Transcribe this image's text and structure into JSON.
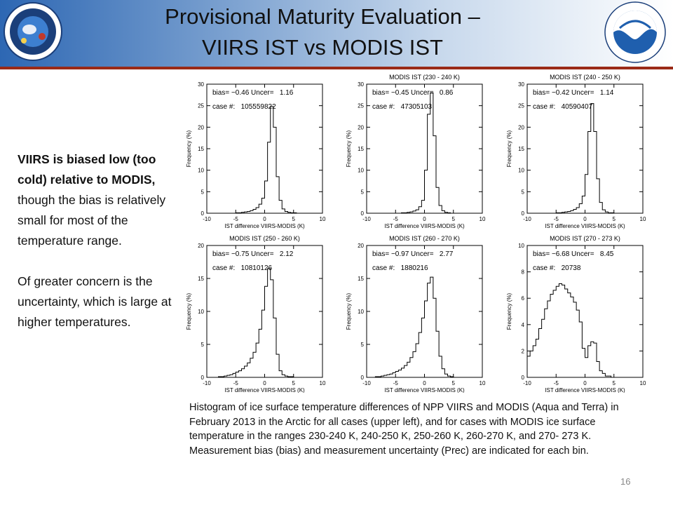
{
  "header": {
    "title_line1": "Provisional Maturity Evaluation –",
    "title_line2": "VIIRS IST vs MODIS IST",
    "logo_left": "noaa-nesdis-star-logo",
    "logo_right": "noaa-logo"
  },
  "left_text": {
    "bold_part": "VIIRS is biased low (too cold) relative to MODIS,",
    "normal_part": " though the bias is relatively small for most of the temperature range.",
    "para2": "Of greater concern is the uncertainty, which is large at higher temperatures."
  },
  "caption": "Histogram of ice surface temperature differences of NPP VIIRS and MODIS (Aqua and Terra) in February 2013 in the Arctic for all cases (upper left), and for cases with MODIS ice surface temperature in the ranges 230-240 K, 240-250 K, 250-260 K, 260-270 K, and 270- 273 K. Measurement bias (bias) and measurement uncertainty (Prec) are indicated for each bin.",
  "page_number": "16",
  "chart_data": [
    {
      "type": "bar",
      "title": "",
      "xlabel": "IST difference VIIRS-MODIS (K)",
      "ylabel": "Frequency (%)",
      "xlim": [
        -10,
        10
      ],
      "ylim": [
        0,
        30
      ],
      "xticks": [
        -10,
        -5,
        0,
        5,
        10
      ],
      "yticks": [
        0,
        5,
        10,
        15,
        20,
        25,
        30
      ],
      "stats_line1": "bias= −0.46 Uncer=   1.16",
      "stats_line2": "case #:   105559822",
      "bin_width": 0.5,
      "x_start": -10,
      "values": [
        0,
        0,
        0,
        0,
        0,
        0,
        0,
        0,
        0,
        0,
        0.1,
        0.1,
        0.2,
        0.3,
        0.4,
        0.6,
        0.9,
        1.3,
        2.1,
        3.5,
        7.5,
        16.5,
        24.8,
        20,
        8.5,
        3,
        1,
        0.4,
        0.2,
        0.1,
        0.1,
        0,
        0,
        0,
        0,
        0,
        0,
        0,
        0,
        0
      ]
    },
    {
      "type": "bar",
      "title": "MODIS IST (230 - 240 K)",
      "xlabel": "IST difference VIIRS-MODIS (K)",
      "ylabel": "Frequency (%)",
      "xlim": [
        -10,
        10
      ],
      "ylim": [
        0,
        30
      ],
      "xticks": [
        -10,
        -5,
        0,
        5,
        10
      ],
      "yticks": [
        0,
        5,
        10,
        15,
        20,
        25,
        30
      ],
      "stats_line1": "bias= −0.45 Uncer=   0.86",
      "stats_line2": "case #:   47305103",
      "bin_width": 0.5,
      "x_start": -10,
      "values": [
        0,
        0,
        0,
        0,
        0,
        0,
        0,
        0,
        0,
        0,
        0,
        0,
        0.1,
        0.1,
        0.2,
        0.3,
        0.5,
        0.8,
        1.5,
        3,
        10,
        23,
        28,
        18,
        6,
        1.8,
        0.6,
        0.2,
        0.1,
        0,
        0,
        0,
        0,
        0,
        0,
        0,
        0,
        0,
        0,
        0
      ]
    },
    {
      "type": "bar",
      "title": "MODIS IST (240 - 250 K)",
      "xlabel": "IST difference VIIRS-MODIS (K)",
      "ylabel": "Frequency (%)",
      "xlim": [
        -10,
        10
      ],
      "ylim": [
        0,
        30
      ],
      "xticks": [
        -10,
        -5,
        0,
        5,
        10
      ],
      "yticks": [
        0,
        5,
        10,
        15,
        20,
        25,
        30
      ],
      "stats_line1": "bias= −0.42 Uncer=   1.14",
      "stats_line2": "case #:   40590407",
      "bin_width": 0.5,
      "x_start": -10,
      "values": [
        0,
        0,
        0,
        0,
        0,
        0,
        0,
        0,
        0,
        0,
        0.1,
        0.1,
        0.2,
        0.3,
        0.4,
        0.6,
        0.9,
        1.3,
        2.2,
        4,
        9,
        19,
        25.5,
        19,
        8,
        2.5,
        0.8,
        0.3,
        0.1,
        0.1,
        0,
        0,
        0,
        0,
        0,
        0,
        0,
        0,
        0,
        0
      ]
    },
    {
      "type": "bar",
      "title": "MODIS IST (250 - 260 K)",
      "xlabel": "IST difference VIIRS-MODIS (K)",
      "ylabel": "Frequency (%)",
      "xlim": [
        -10,
        10
      ],
      "ylim": [
        0,
        20
      ],
      "xticks": [
        -10,
        -5,
        0,
        5,
        10
      ],
      "yticks": [
        0,
        5,
        10,
        15,
        20
      ],
      "stats_line1": "bias= −0.75 Uncer=   2.12",
      "stats_line2": "case #:   10810126",
      "bin_width": 0.5,
      "x_start": -10,
      "values": [
        0,
        0,
        0,
        0,
        0.1,
        0.1,
        0.2,
        0.3,
        0.4,
        0.6,
        0.8,
        1,
        1.3,
        1.7,
        2.2,
        2.9,
        3.8,
        5.2,
        7.3,
        10.2,
        13.8,
        16.5,
        14.8,
        9,
        3.5,
        1,
        0.4,
        0.2,
        0.1,
        0.1,
        0,
        0,
        0,
        0,
        0,
        0,
        0,
        0,
        0,
        0
      ]
    },
    {
      "type": "bar",
      "title": "MODIS IST (260 - 270 K)",
      "xlabel": "IST difference VIIRS-MODIS (K)",
      "ylabel": "Frequency (%)",
      "xlim": [
        -10,
        10
      ],
      "ylim": [
        0,
        20
      ],
      "xticks": [
        -10,
        -5,
        0,
        5,
        10
      ],
      "yticks": [
        0,
        5,
        10,
        15,
        20
      ],
      "stats_line1": "bias= −0.97 Uncer=   2.77",
      "stats_line2": "case #:   1880216",
      "bin_width": 0.5,
      "x_start": -10,
      "values": [
        0,
        0,
        0,
        0.1,
        0.1,
        0.2,
        0.3,
        0.4,
        0.5,
        0.7,
        0.9,
        1.1,
        1.4,
        1.8,
        2.3,
        3,
        3.9,
        5.1,
        6.8,
        9,
        11.6,
        14.3,
        15.2,
        12,
        7,
        3.2,
        1.3,
        0.5,
        0.2,
        0.1,
        0,
        0,
        0,
        0,
        0,
        0,
        0,
        0,
        0,
        0
      ]
    },
    {
      "type": "bar",
      "title": "MODIS IST (270 - 273 K)",
      "xlabel": "IST difference VIIRS-MODIS (K)",
      "ylabel": "Frequency (%)",
      "xlim": [
        -10,
        10
      ],
      "ylim": [
        0,
        10
      ],
      "xticks": [
        -10,
        -5,
        0,
        5,
        10
      ],
      "yticks": [
        0,
        2,
        4,
        6,
        8,
        10
      ],
      "stats_line1": "bias= −6.68 Uncer=   8.45",
      "stats_line2": "case #:   20738",
      "bin_width": 0.5,
      "x_start": -10,
      "values": [
        1.6,
        2,
        2.4,
        2.9,
        3.7,
        4.4,
        5.2,
        5.8,
        6.3,
        6.6,
        6.9,
        7.1,
        7,
        6.7,
        6.4,
        6.1,
        5.7,
        5.1,
        4.2,
        2.2,
        1.5,
        2.4,
        2.7,
        2.6,
        1.2,
        0.5,
        0.3,
        0.1,
        0.1,
        0,
        0,
        0,
        0,
        0,
        0,
        0,
        0,
        0,
        0,
        0
      ]
    }
  ]
}
